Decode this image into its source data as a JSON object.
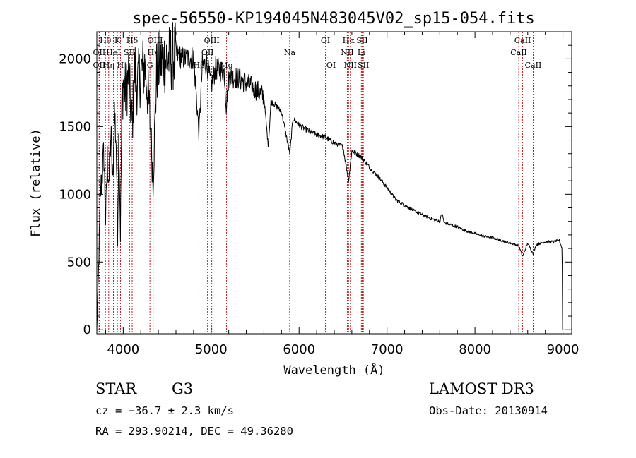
{
  "chart_data": {
    "type": "line",
    "title": "spec-56550-KP194045N483045V02_sp15-054.fits",
    "xlabel": "Wavelength (Å)",
    "ylabel": "Flux (relative)",
    "xlim": [
      3700,
      9100
    ],
    "ylim": [
      -30,
      2200
    ],
    "xticks": [
      4000,
      5000,
      6000,
      7000,
      8000,
      9000
    ],
    "yticks": [
      0,
      500,
      1000,
      1500,
      2000
    ],
    "grid": false,
    "series": [
      {
        "name": "spectrum",
        "x": [
          3700,
          3720,
          3740,
          3760,
          3780,
          3800,
          3820,
          3840,
          3860,
          3880,
          3900,
          3920,
          3935,
          3950,
          3968,
          3985,
          4000,
          4030,
          4060,
          4102,
          4130,
          4160,
          4200,
          4250,
          4300,
          4340,
          4380,
          4420,
          4500,
          4600,
          4700,
          4800,
          4861,
          4900,
          4950,
          5000,
          5050,
          5100,
          5150,
          5172,
          5200,
          5300,
          5400,
          5500,
          5600,
          5650,
          5680,
          5700,
          5800,
          5895,
          5930,
          6000,
          6100,
          6200,
          6300,
          6400,
          6500,
          6563,
          6600,
          6700,
          6800,
          6900,
          7000,
          7100,
          7200,
          7300,
          7400,
          7500,
          7600,
          7625,
          7650,
          7700,
          7800,
          7900,
          8000,
          8100,
          8200,
          8300,
          8400,
          8498,
          8542,
          8600,
          8662,
          8700,
          8800,
          8900,
          8960,
          8990,
          9000
        ],
        "y": [
          0,
          450,
          1000,
          1150,
          1300,
          800,
          1250,
          1100,
          1450,
          1050,
          1600,
          1400,
          650,
          1500,
          700,
          1650,
          1820,
          1750,
          1880,
          1500,
          1930,
          1800,
          1900,
          1950,
          1600,
          1100,
          1900,
          1980,
          2000,
          2030,
          2000,
          2010,
          1450,
          1950,
          1970,
          1800,
          1930,
          1920,
          1900,
          1650,
          1870,
          1860,
          1820,
          1780,
          1720,
          1350,
          1680,
          1680,
          1610,
          1300,
          1560,
          1510,
          1470,
          1440,
          1420,
          1380,
          1350,
          1100,
          1320,
          1280,
          1200,
          1130,
          1050,
          960,
          920,
          880,
          850,
          820,
          800,
          860,
          790,
          780,
          760,
          730,
          710,
          690,
          680,
          660,
          640,
          620,
          540,
          640,
          560,
          630,
          650,
          650,
          660,
          600,
          0
        ]
      }
    ],
    "line_marks": [
      {
        "label": "Hθ",
        "x": 3798,
        "row": 1
      },
      {
        "label": "OII",
        "x": 3727,
        "row": 2
      },
      {
        "label": "OII",
        "x": 3727,
        "row": 3
      },
      {
        "label": "K",
        "x": 3934,
        "row": 1
      },
      {
        "label": "HeI",
        "x": 3889,
        "row": 2
      },
      {
        "label": "Hη",
        "x": 3835,
        "row": 3
      },
      {
        "label": "Hδ",
        "x": 4102,
        "row": 1
      },
      {
        "label": "SII",
        "x": 4072,
        "row": 2
      },
      {
        "label": "H",
        "x": 3969,
        "row": 3
      },
      {
        "label": "OIII",
        "x": 4363,
        "row": 1
      },
      {
        "label": "Hγ",
        "x": 4340,
        "row": 2
      },
      {
        "label": "G",
        "x": 4304,
        "row": 3
      },
      {
        "label": "OIII",
        "x": 5007,
        "row": 1
      },
      {
        "label": "OII",
        "x": 4959,
        "row": 2
      },
      {
        "label": "Hβ",
        "x": 4861,
        "row": 3
      },
      {
        "label": "Mg",
        "x": 5175,
        "row": 3
      },
      {
        "label": "Na",
        "x": 5893,
        "row": 2
      },
      {
        "label": "OI",
        "x": 6300,
        "row": 1
      },
      {
        "label": "OI",
        "x": 6364,
        "row": 3
      },
      {
        "label": "Hα",
        "x": 6563,
        "row": 1
      },
      {
        "label": "NII",
        "x": 6548,
        "row": 2
      },
      {
        "label": "NII",
        "x": 6583,
        "row": 3
      },
      {
        "label": "SII",
        "x": 6717,
        "row": 1
      },
      {
        "label": "Li",
        "x": 6708,
        "row": 2
      },
      {
        "label": "SII",
        "x": 6731,
        "row": 3
      },
      {
        "label": "CaII",
        "x": 8542,
        "row": 1
      },
      {
        "label": "CaII",
        "x": 8498,
        "row": 2
      },
      {
        "label": "CaII",
        "x": 8662,
        "row": 3
      }
    ]
  },
  "info": {
    "object_type": "STAR",
    "spectral_class": "G3",
    "survey": "LAMOST DR3",
    "velocity": "cz = −36.7 ± 2.3 km/s",
    "obs_date": "Obs-Date: 20130914",
    "coords": "RA = 293.90214, DEC =  49.36280"
  },
  "colors": {
    "axis": "#000000",
    "spectrum": "#000000",
    "marker_lines": "#b22222"
  }
}
